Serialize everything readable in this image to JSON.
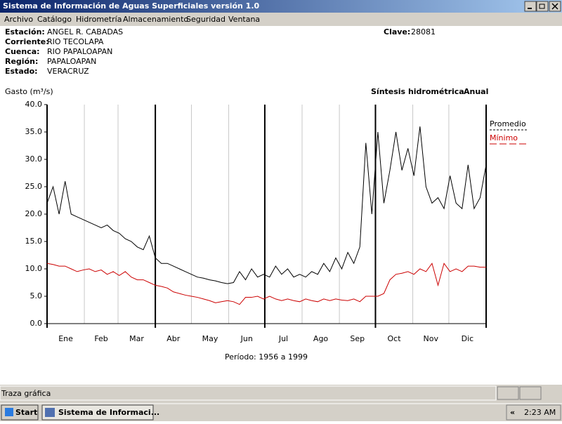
{
  "window": {
    "title": "Sistema de Información de Aguas Superficiales  versión 1.0"
  },
  "menu": [
    "Archivo",
    "Catálogo",
    "Hidrometría",
    "Almacenamiento",
    "Seguridad",
    "Ventana"
  ],
  "info": [
    {
      "label": "Estación:",
      "value": "ANGEL R. CABADAS"
    },
    {
      "label": "Corriente:",
      "value": "RIO TECOLAPA"
    },
    {
      "label": "Cuenca:",
      "value": "RIO PAPALOAPAN"
    },
    {
      "label": "Región:",
      "value": "PAPALOAPAN"
    },
    {
      "label": "Estado:",
      "value": "VERACRUZ"
    }
  ],
  "clave": {
    "label": "Clave:",
    "value": "28081"
  },
  "chart_data": {
    "type": "line",
    "ylabel": "Gasto (m³/s)",
    "title": "Síntesis hidrométrica",
    "subtitle": "Anual",
    "period": "Período:  1956 a 1999",
    "categories": [
      "Ene",
      "Feb",
      "Mar",
      "Abr",
      "May",
      "Jun",
      "Jul",
      "Ago",
      "Sep",
      "Oct",
      "Nov",
      "Dic"
    ],
    "xlim": [
      0,
      365
    ],
    "xticks": [
      0,
      31,
      59,
      90,
      120,
      151,
      181,
      212,
      243,
      273,
      304,
      334,
      365
    ],
    "major_xticks": [
      90,
      181,
      273,
      365
    ],
    "ylim": [
      0,
      40
    ],
    "yticks": [
      {
        "value": 0,
        "label": "0.0"
      },
      {
        "value": 5,
        "label": "5.0"
      },
      {
        "value": 10,
        "label": "10.0"
      },
      {
        "value": 15,
        "label": "15.0"
      },
      {
        "value": 20,
        "label": "20.0"
      },
      {
        "value": 25,
        "label": "25.0"
      },
      {
        "value": 30,
        "label": "30.0"
      },
      {
        "value": 35,
        "label": "35.0"
      },
      {
        "value": 40,
        "label": "40.0"
      }
    ],
    "x": [
      0,
      5,
      10,
      15,
      20,
      25,
      30,
      35,
      40,
      45,
      50,
      55,
      60,
      65,
      70,
      75,
      80,
      85,
      90,
      95,
      100,
      105,
      110,
      115,
      120,
      125,
      130,
      135,
      140,
      145,
      150,
      155,
      160,
      165,
      170,
      175,
      180,
      185,
      190,
      195,
      200,
      205,
      210,
      215,
      220,
      225,
      230,
      235,
      240,
      245,
      250,
      255,
      260,
      265,
      270,
      275,
      280,
      285,
      290,
      295,
      300,
      305,
      310,
      315,
      320,
      325,
      330,
      335,
      340,
      345,
      350,
      355,
      360,
      365
    ],
    "series": [
      {
        "name": "Promedio",
        "color": "#000000",
        "values": [
          22,
          25,
          20,
          26,
          20,
          19.5,
          19,
          18.5,
          18,
          17.5,
          18,
          17,
          16.5,
          15.5,
          15,
          14,
          13.5,
          16,
          12,
          11,
          11,
          10.5,
          10,
          9.5,
          9,
          8.5,
          8.3,
          8,
          7.8,
          7.5,
          7.3,
          7.5,
          9.5,
          8,
          10,
          8.5,
          9,
          8.5,
          10.5,
          9,
          10,
          8.5,
          9,
          8.5,
          9.5,
          9,
          11,
          9.5,
          12,
          10,
          13,
          11,
          14,
          33,
          20,
          35,
          22,
          28,
          35,
          28,
          32,
          27,
          36,
          25,
          22,
          23,
          21,
          27,
          22,
          21,
          29,
          21,
          23,
          29
        ]
      },
      {
        "name": "Mínimo",
        "color": "#cc0000",
        "values": [
          11,
          10.8,
          10.5,
          10.5,
          10,
          9.5,
          9.8,
          10,
          9.5,
          9.8,
          9,
          9.5,
          8.8,
          9.5,
          8.5,
          8,
          8,
          7.5,
          7,
          6.8,
          6.5,
          5.8,
          5.5,
          5.2,
          5,
          4.8,
          4.5,
          4.2,
          3.8,
          4,
          4.2,
          4,
          3.5,
          4.8,
          4.8,
          5,
          4.5,
          5,
          4.5,
          4.2,
          4.5,
          4.2,
          4,
          4.5,
          4.2,
          4,
          4.5,
          4.2,
          4.5,
          4.3,
          4.2,
          4.5,
          4,
          5,
          5,
          5,
          5.5,
          8,
          9,
          9.2,
          9.5,
          9,
          10,
          9.5,
          11,
          7,
          11,
          9.5,
          10,
          9.5,
          10.5,
          10.5,
          10.3,
          10.3
        ]
      }
    ]
  },
  "status": "Traza gráfica",
  "taskbar": {
    "start": "Start",
    "task": "Sistema de Informaci...",
    "tray": "«",
    "clock": "2:23 AM"
  }
}
